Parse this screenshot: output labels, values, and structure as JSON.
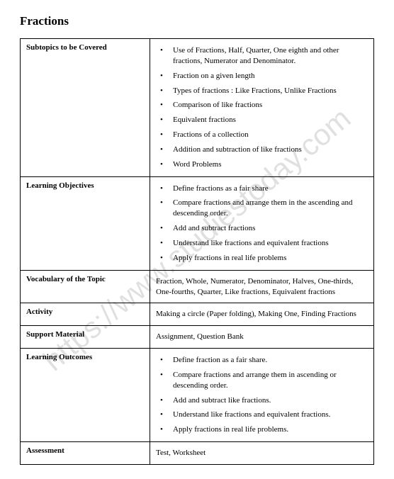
{
  "title": "Fractions",
  "watermark": "https://www.studiestoday.com",
  "table": {
    "columns": [
      "label",
      "content"
    ],
    "rows": [
      {
        "label": "Subtopics to be Covered",
        "type": "bullets",
        "items": [
          "Use of Fractions, Half, Quarter, One eighth and other fractions, Numerator and Denominator.",
          "Fraction on a given length",
          "Types of fractions : Like Fractions, Unlike Fractions",
          "Comparison of like fractions",
          "Equivalent fractions",
          "Fractions of a collection",
          "Addition and subtraction of like fractions",
          "Word Problems"
        ]
      },
      {
        "label": "Learning Objectives",
        "type": "bullets",
        "items": [
          "Define fractions as a fair share",
          "Compare fractions and arrange them in the ascending and descending order.",
          "Add and subtract fractions",
          "Understand like fractions and equivalent fractions",
          "Apply fractions in real life problems"
        ]
      },
      {
        "label": "Vocabulary of the Topic",
        "type": "plain",
        "text": "Fraction, Whole, Numerator, Denominator, Halves, One-thirds, One-fourths, Quarter, Like fractions, Equivalent fractions"
      },
      {
        "label": "Activity",
        "type": "plain",
        "text": "Making a circle (Paper folding), Making One, Finding Fractions"
      },
      {
        "label": "Support Material",
        "type": "plain",
        "text": "Assignment, Question Bank"
      },
      {
        "label": "Learning Outcomes",
        "type": "bullets",
        "items": [
          "Define fraction as a fair share.",
          "Compare fractions and arrange them in ascending or descending order.",
          "Add and subtract like fractions.",
          "Understand like fractions and equivalent fractions.",
          "Apply fractions in real life problems."
        ]
      },
      {
        "label": "Assessment",
        "type": "plain",
        "text": "Test, Worksheet"
      }
    ]
  },
  "colors": {
    "text": "#000000",
    "border": "#000000",
    "background": "#ffffff",
    "watermark": "rgba(0,0,0,0.12)"
  },
  "typography": {
    "title_fontsize": 17,
    "body_fontsize": 11,
    "font_family": "Georgia, Times New Roman, serif"
  }
}
